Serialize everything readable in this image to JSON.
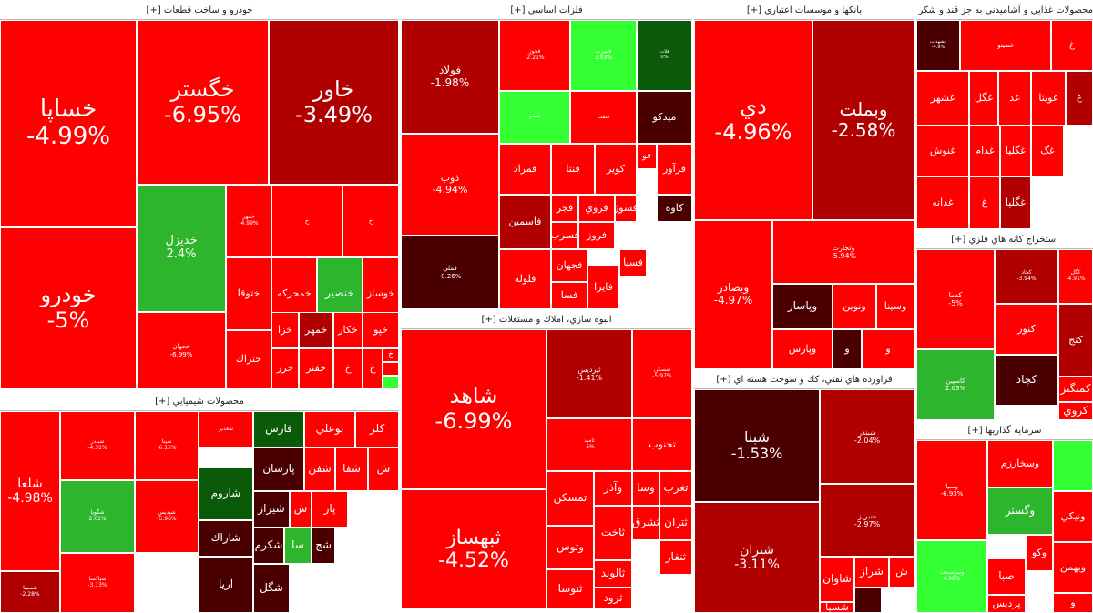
{
  "colors": {
    "red": "#ff0000",
    "darkred": "#b00000",
    "maroon": "#4a0000",
    "green": "#2db52d",
    "lime": "#33ff33",
    "darkgreen": "#0a5a0a"
  },
  "chart_data": {
    "type": "treemap",
    "sectors": [
      {
        "title": "خودرو و ساخت قطعات [+]",
        "tiles": [
          {
            "symbol": "خساپا",
            "change": "-4.99%",
            "color": "red"
          },
          {
            "symbol": "خودرو",
            "change": "-5%",
            "color": "red"
          },
          {
            "symbol": "خگستر",
            "change": "-6.95%",
            "color": "red"
          },
          {
            "symbol": "خاور",
            "change": "-3.49%",
            "color": "darkred"
          },
          {
            "symbol": "خديزل",
            "change": "2.4%",
            "color": "green"
          },
          {
            "symbol": "خمهر",
            "change": "-4.99%",
            "color": "red"
          },
          {
            "symbol": "خ",
            "change": "",
            "color": "red"
          },
          {
            "symbol": "خ",
            "change": "",
            "color": "red"
          },
          {
            "symbol": "ختوقا",
            "change": "",
            "color": "red"
          },
          {
            "symbol": "خمحركه",
            "change": "",
            "color": "red"
          },
          {
            "symbol": "خنصير",
            "change": "",
            "color": "green"
          },
          {
            "symbol": "خوساز",
            "change": "",
            "color": "red"
          },
          {
            "symbol": "خجهان",
            "change": "-6.99%",
            "color": "red"
          },
          {
            "symbol": "ختراك",
            "change": "",
            "color": "red"
          },
          {
            "symbol": "خزر",
            "change": "",
            "color": "red"
          },
          {
            "symbol": "خزا",
            "change": "",
            "color": "red"
          },
          {
            "symbol": "خمهر",
            "change": "",
            "color": "darkred"
          },
          {
            "symbol": "خكار",
            "change": "",
            "color": "red"
          },
          {
            "symbol": "خپو",
            "change": "",
            "color": "red"
          },
          {
            "symbol": "خفنر",
            "change": "",
            "color": "red"
          },
          {
            "symbol": "خ",
            "change": "",
            "color": "red"
          },
          {
            "symbol": "خ",
            "change": "",
            "color": "red"
          },
          {
            "symbol": "خ",
            "change": "",
            "color": "red"
          },
          {
            "symbol": "",
            "change": "",
            "color": "red"
          },
          {
            "symbol": "",
            "change": "",
            "color": "lime"
          }
        ]
      },
      {
        "title": "فلزات اساسي [+]",
        "tiles": [
          {
            "symbol": "فولاد",
            "change": "-1.98%",
            "color": "darkred"
          },
          {
            "symbol": "فخوز",
            "change": "-2.21%",
            "color": "red"
          },
          {
            "symbol": "فسرب",
            "change": "3.03%",
            "color": "lime"
          },
          {
            "symbol": "فلات",
            "change": "0%",
            "color": "darkgreen"
          },
          {
            "symbol": "فسدو",
            "change": "",
            "color": "lime"
          },
          {
            "symbol": "فنفت",
            "change": "",
            "color": "red"
          },
          {
            "symbol": "ميدكو",
            "change": "",
            "color": "maroon"
          },
          {
            "symbol": "ذوب",
            "change": "-4.94%",
            "color": "red"
          },
          {
            "symbol": "فمراد",
            "change": "",
            "color": "red"
          },
          {
            "symbol": "فنتا",
            "change": "",
            "color": "red"
          },
          {
            "symbol": "كوير",
            "change": "",
            "color": "red"
          },
          {
            "symbol": "فو",
            "change": "",
            "color": "red"
          },
          {
            "symbol": "فرآور",
            "change": "",
            "color": "red"
          },
          {
            "symbol": "فجر",
            "change": "",
            "color": "red"
          },
          {
            "symbol": "فروي",
            "change": "",
            "color": "red"
          },
          {
            "symbol": "فسوژ",
            "change": "",
            "color": "red"
          },
          {
            "symbol": "كاوه",
            "change": "",
            "color": "maroon"
          },
          {
            "symbol": "فاسمين",
            "change": "",
            "color": "darkred"
          },
          {
            "symbol": "فسرب",
            "change": "",
            "color": "red"
          },
          {
            "symbol": "فروز",
            "change": "",
            "color": "red"
          },
          {
            "symbol": "فملي",
            "change": "-0.26%",
            "color": "maroon"
          },
          {
            "symbol": "فلوله",
            "change": "",
            "color": "red"
          },
          {
            "symbol": "فجهان",
            "change": "",
            "color": "red"
          },
          {
            "symbol": "فسا",
            "change": "",
            "color": "red"
          },
          {
            "symbol": "فايرا",
            "change": "",
            "color": "red"
          },
          {
            "symbol": "فسپا",
            "change": "",
            "color": "red"
          }
        ]
      },
      {
        "title": "بانكها و موسسات اعتباري [+]",
        "tiles": [
          {
            "symbol": "دي",
            "change": "-4.96%",
            "color": "red"
          },
          {
            "symbol": "وبملت",
            "change": "-2.58%",
            "color": "darkred"
          },
          {
            "symbol": "وبصادر",
            "change": "-4.97%",
            "color": "red"
          },
          {
            "symbol": "وتجارت",
            "change": "-5.94%",
            "color": "red"
          },
          {
            "symbol": "وپاسار",
            "change": "",
            "color": "maroon"
          },
          {
            "symbol": "ونوين",
            "change": "",
            "color": "red"
          },
          {
            "symbol": "وسينا",
            "change": "",
            "color": "red"
          },
          {
            "symbol": "وپارس",
            "change": "",
            "color": "red"
          },
          {
            "symbol": "و",
            "change": "",
            "color": "maroon"
          },
          {
            "symbol": "و",
            "change": "",
            "color": "red"
          }
        ]
      },
      {
        "title": "محصولات غذايي و آشاميدني به جز قند و شكر [+]",
        "tiles": [
          {
            "symbol": "غشهداب",
            "change": "-4.9%",
            "color": "maroon"
          },
          {
            "symbol": "غصينو",
            "change": "",
            "color": "red"
          },
          {
            "symbol": "غ",
            "change": "",
            "color": "red"
          },
          {
            "symbol": "غشهر",
            "change": "",
            "color": "red"
          },
          {
            "symbol": "غگل",
            "change": "",
            "color": "red"
          },
          {
            "symbol": "غد",
            "change": "",
            "color": "red"
          },
          {
            "symbol": "غويتا",
            "change": "",
            "color": "red"
          },
          {
            "symbol": "غ",
            "change": "",
            "color": "darkred"
          },
          {
            "symbol": "غنوش",
            "change": "",
            "color": "red"
          },
          {
            "symbol": "غدام",
            "change": "",
            "color": "red"
          },
          {
            "symbol": "غگلپا",
            "change": "",
            "color": "red"
          },
          {
            "symbol": "غگ",
            "change": "",
            "color": "red"
          },
          {
            "symbol": "غدانه",
            "change": "",
            "color": "red"
          },
          {
            "symbol": "غ",
            "change": "",
            "color": "red"
          },
          {
            "symbol": "غگلپا",
            "change": "",
            "color": "darkred"
          }
        ]
      },
      {
        "title": "محصولات شيميايي [+]",
        "tiles": [
          {
            "symbol": "شلعا",
            "change": "-4.98%",
            "color": "red"
          },
          {
            "symbol": "شبندر",
            "change": "-4.31%",
            "color": "red"
          },
          {
            "symbol": "شپنا",
            "change": "-6.15%",
            "color": "red"
          },
          {
            "symbol": "شغدير",
            "change": "",
            "color": "red"
          },
          {
            "symbol": "فارس",
            "change": "",
            "color": "darkgreen"
          },
          {
            "symbol": "بوعلي",
            "change": "",
            "color": "red"
          },
          {
            "symbol": "كلر",
            "change": "",
            "color": "red"
          },
          {
            "symbol": "شگويا",
            "change": "2.61%",
            "color": "green"
          },
          {
            "symbol": "شپديس",
            "change": "-5.96%",
            "color": "red"
          },
          {
            "symbol": "پارسان",
            "change": "",
            "color": "maroon"
          },
          {
            "symbol": "شفن",
            "change": "",
            "color": "red"
          },
          {
            "symbol": "شفا",
            "change": "",
            "color": "red"
          },
          {
            "symbol": "ش",
            "change": "",
            "color": "red"
          },
          {
            "symbol": "شاروم",
            "change": "",
            "color": "darkgreen"
          },
          {
            "symbol": "شيراز",
            "change": "",
            "color": "maroon"
          },
          {
            "symbol": "ش",
            "change": "",
            "color": "red"
          },
          {
            "symbol": "پار",
            "change": "",
            "color": "red"
          },
          {
            "symbol": "شاراك",
            "change": "",
            "color": "maroon"
          },
          {
            "symbol": "شكرم",
            "change": "",
            "color": "maroon"
          },
          {
            "symbol": "سا",
            "change": "",
            "color": "green"
          },
          {
            "symbol": "شج",
            "change": "",
            "color": "maroon"
          },
          {
            "symbol": "شسينا",
            "change": "-2.28%",
            "color": "darkred"
          },
          {
            "symbol": "شپاكسا",
            "change": "-3.13%",
            "color": "red"
          },
          {
            "symbol": "آريا",
            "change": "",
            "color": "maroon"
          },
          {
            "symbol": "شگل",
            "change": "",
            "color": "maroon"
          }
        ]
      },
      {
        "title": "انبوه سازي، املاك و مستغلات [+]",
        "tiles": [
          {
            "symbol": "شاهد",
            "change": "-6.99%",
            "color": "red"
          },
          {
            "symbol": "ثپردیس",
            "change": "-1.41%",
            "color": "darkred"
          },
          {
            "symbol": "ثمسکن",
            "change": "-5.97%",
            "color": "red"
          },
          {
            "symbol": "ثامید",
            "change": "-5%",
            "color": "red"
          },
          {
            "symbol": "تجنوب",
            "change": "",
            "color": "red"
          },
          {
            "symbol": "ثبهساز",
            "change": "-4.52%",
            "color": "red"
          },
          {
            "symbol": "تمسكن",
            "change": "",
            "color": "red"
          },
          {
            "symbol": "وآذر",
            "change": "",
            "color": "red"
          },
          {
            "symbol": "وسا",
            "change": "",
            "color": "red"
          },
          {
            "symbol": "تغرب",
            "change": "",
            "color": "red"
          },
          {
            "symbol": "وتوس",
            "change": "",
            "color": "red"
          },
          {
            "symbol": "ثاخت",
            "change": "",
            "color": "red"
          },
          {
            "symbol": "ثشرق",
            "change": "",
            "color": "red"
          },
          {
            "symbol": "ثتران",
            "change": "",
            "color": "red"
          },
          {
            "symbol": "ثنوسا",
            "change": "",
            "color": "red"
          },
          {
            "symbol": "ثالوند",
            "change": "",
            "color": "red"
          },
          {
            "symbol": "ثنفار",
            "change": "",
            "color": "red"
          },
          {
            "symbol": "ثرود",
            "change": "",
            "color": "red"
          }
        ]
      },
      {
        "title": "فراورده هاي نفتي، كك و سوخت هسته اي [+]",
        "tiles": [
          {
            "symbol": "شبنا",
            "change": "-1.53%",
            "color": "maroon"
          },
          {
            "symbol": "شبندر",
            "change": "-2.04%",
            "color": "darkred"
          },
          {
            "symbol": "شتران",
            "change": "-3.11%",
            "color": "darkred"
          },
          {
            "symbol": "شبريز",
            "change": "-2.97%",
            "color": "darkred"
          },
          {
            "symbol": "شاوان",
            "change": "",
            "color": "red"
          },
          {
            "symbol": "شراز",
            "change": "",
            "color": "red"
          },
          {
            "symbol": "ش",
            "change": "",
            "color": "red"
          },
          {
            "symbol": "شسپا",
            "change": "",
            "color": "red"
          },
          {
            "symbol": "",
            "change": "",
            "color": "maroon"
          }
        ]
      },
      {
        "title": "استخراج كانه هاي فلزي [+]",
        "tiles": [
          {
            "symbol": "كدما",
            "change": "-5%",
            "color": "red"
          },
          {
            "symbol": "كچاد",
            "change": "-3.94%",
            "color": "darkred"
          },
          {
            "symbol": "كگل",
            "change": "-4.91%",
            "color": "red"
          },
          {
            "symbol": "كنور",
            "change": "",
            "color": "red"
          },
          {
            "symbol": "كتج",
            "change": "",
            "color": "darkred"
          },
          {
            "symbol": "كرمان",
            "change": "",
            "color": "red"
          },
          {
            "symbol": "كاسپين",
            "change": "2.03%",
            "color": "green"
          },
          {
            "symbol": "كچاد",
            "change": "",
            "color": "maroon"
          },
          {
            "symbol": "كمنگنز",
            "change": "",
            "color": "red"
          },
          {
            "symbol": "كروي",
            "change": "",
            "color": "red"
          }
        ]
      },
      {
        "title": "سرمايه گذاريها [+]",
        "tiles": [
          {
            "symbol": "وسپا",
            "change": "-6.93%",
            "color": "red"
          },
          {
            "symbol": "وسخارزم",
            "change": "",
            "color": "red"
          },
          {
            "symbol": "",
            "change": "",
            "color": "lime"
          },
          {
            "symbol": "وگستر",
            "change": "",
            "color": "green"
          },
          {
            "symbol": "وكو",
            "change": "",
            "color": "red"
          },
          {
            "symbol": "ونيكي",
            "change": "",
            "color": "red"
          },
          {
            "symbol": "وسرصنعت",
            "change": "4.98%",
            "color": "lime"
          },
          {
            "symbol": "صبا",
            "change": "",
            "color": "red"
          },
          {
            "symbol": "وبهمن",
            "change": "",
            "color": "red"
          },
          {
            "symbol": "پرديس",
            "change": "",
            "color": "red"
          },
          {
            "symbol": "و",
            "change": "",
            "color": "red"
          }
        ]
      }
    ]
  }
}
